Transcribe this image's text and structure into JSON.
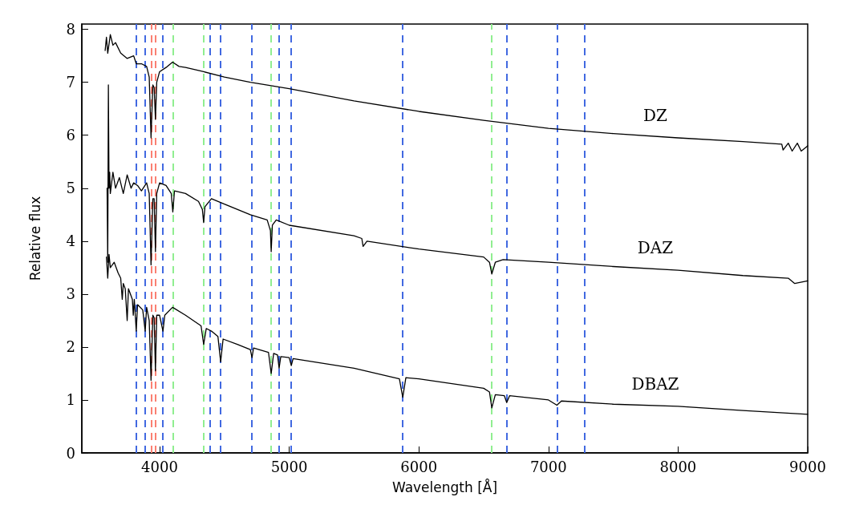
{
  "chart_data": {
    "type": "line",
    "xlabel": "Wavelength [Å]",
    "ylabel": "Relative flux",
    "xlim": [
      3400,
      9000
    ],
    "xticks": [
      4000,
      5000,
      6000,
      7000,
      8000,
      9000
    ],
    "ylim": [
      0,
      8.1
    ],
    "yticks": [
      0,
      1,
      2,
      3,
      4,
      5,
      6,
      7,
      8
    ],
    "grid": false,
    "marker": "none",
    "line_style": "solid",
    "series": [
      {
        "color": "#000000",
        "x": [
          3580,
          3590,
          3600,
          3620,
          3640,
          3660,
          3700,
          3750,
          3800,
          3820,
          3860,
          3900,
          3920,
          3934,
          3948,
          3958,
          3968,
          3978,
          4000,
          4050,
          4100,
          4150,
          4200,
          4340,
          4500,
          4700,
          5000,
          5500,
          6000,
          6500,
          7000,
          7500,
          8000,
          8500,
          8800,
          8810,
          8850,
          8880,
          8920,
          8950,
          9000
        ],
        "values": [
          7.6,
          7.85,
          7.55,
          7.9,
          7.7,
          7.75,
          7.55,
          7.45,
          7.5,
          7.35,
          7.35,
          7.3,
          7.1,
          5.95,
          6.95,
          6.9,
          6.3,
          7.0,
          7.2,
          7.28,
          7.38,
          7.3,
          7.28,
          7.2,
          7.1,
          7.0,
          6.88,
          6.65,
          6.45,
          6.28,
          6.13,
          6.03,
          5.95,
          5.88,
          5.83,
          5.72,
          5.85,
          5.7,
          5.85,
          5.7,
          5.8
        ]
      },
      {
        "color": "#000000",
        "x": [
          3595,
          3600,
          3605,
          3610,
          3615,
          3620,
          3640,
          3660,
          3690,
          3720,
          3750,
          3780,
          3800,
          3830,
          3860,
          3900,
          3920,
          3934,
          3948,
          3958,
          3968,
          3978,
          4000,
          4050,
          4090,
          4102,
          4115,
          4200,
          4300,
          4330,
          4340,
          4350,
          4400,
          4500,
          4700,
          4830,
          4855,
          4861,
          4870,
          4900,
          5000,
          5500,
          5560,
          5570,
          5600,
          6000,
          6500,
          6545,
          6563,
          6590,
          6650,
          7000,
          7500,
          8000,
          8500,
          8850,
          8900,
          9000
        ],
        "values": [
          5.0,
          3.6,
          6.95,
          5.0,
          5.3,
          4.9,
          5.3,
          5.0,
          5.2,
          4.9,
          5.25,
          5.0,
          5.1,
          5.05,
          4.95,
          5.1,
          4.9,
          3.55,
          4.8,
          4.8,
          3.8,
          4.9,
          5.1,
          5.05,
          4.9,
          4.55,
          4.95,
          4.9,
          4.75,
          4.6,
          4.35,
          4.65,
          4.8,
          4.7,
          4.5,
          4.4,
          4.2,
          3.8,
          4.3,
          4.4,
          4.3,
          4.1,
          4.05,
          3.9,
          4.0,
          3.85,
          3.7,
          3.6,
          3.38,
          3.6,
          3.65,
          3.6,
          3.52,
          3.45,
          3.35,
          3.3,
          3.2,
          3.25
        ]
      },
      {
        "color": "#000000",
        "x": [
          3590,
          3600,
          3610,
          3620,
          3650,
          3680,
          3700,
          3712,
          3720,
          3735,
          3750,
          3760,
          3790,
          3797,
          3805,
          3820,
          3830,
          3870,
          3889,
          3900,
          3920,
          3934,
          3948,
          3958,
          3968,
          3978,
          4000,
          4026,
          4040,
          4100,
          4200,
          4320,
          4340,
          4360,
          4400,
          4450,
          4471,
          4490,
          4600,
          4700,
          4713,
          4725,
          4840,
          4861,
          4880,
          4910,
          4922,
          4935,
          5000,
          5016,
          5030,
          5500,
          5850,
          5876,
          5900,
          6000,
          6500,
          6545,
          6563,
          6590,
          6660,
          6678,
          6700,
          7000,
          7065,
          7100,
          7500,
          8000,
          8500,
          9000
        ],
        "values": [
          3.7,
          3.3,
          3.75,
          3.5,
          3.6,
          3.4,
          3.3,
          2.9,
          3.2,
          3.1,
          2.5,
          3.1,
          2.9,
          2.6,
          2.9,
          2.3,
          2.8,
          2.7,
          2.3,
          2.75,
          2.5,
          1.37,
          2.6,
          2.55,
          1.55,
          2.6,
          2.6,
          2.3,
          2.6,
          2.75,
          2.6,
          2.4,
          2.05,
          2.35,
          2.3,
          2.2,
          1.72,
          2.15,
          2.05,
          1.95,
          1.8,
          1.98,
          1.9,
          1.5,
          1.88,
          1.85,
          1.6,
          1.82,
          1.8,
          1.65,
          1.78,
          1.6,
          1.4,
          1.05,
          1.42,
          1.4,
          1.22,
          1.15,
          0.85,
          1.1,
          1.08,
          0.95,
          1.08,
          1.0,
          0.9,
          0.98,
          0.92,
          0.88,
          0.8,
          0.73
        ]
      }
    ],
    "ref_lines": [
      {
        "axis": "x",
        "value": 3820,
        "color": "#4169e1",
        "line_style": "dashed"
      },
      {
        "axis": "x",
        "value": 3889,
        "color": "#4169e1",
        "line_style": "dashed"
      },
      {
        "axis": "x",
        "value": 3934,
        "color": "#fa8072",
        "line_style": "dashed"
      },
      {
        "axis": "x",
        "value": 3968,
        "color": "#fa8072",
        "line_style": "dashed"
      },
      {
        "axis": "x",
        "value": 4026,
        "color": "#4169e1",
        "line_style": "dashed"
      },
      {
        "axis": "x",
        "value": 4102,
        "color": "#90ee90",
        "line_style": "dashed"
      },
      {
        "axis": "x",
        "value": 4340,
        "color": "#90ee90",
        "line_style": "dashed"
      },
      {
        "axis": "x",
        "value": 4388,
        "color": "#4169e1",
        "line_style": "dashed"
      },
      {
        "axis": "x",
        "value": 4471,
        "color": "#4169e1",
        "line_style": "dashed"
      },
      {
        "axis": "x",
        "value": 4713,
        "color": "#4169e1",
        "line_style": "dashed"
      },
      {
        "axis": "x",
        "value": 4861,
        "color": "#90ee90",
        "line_style": "dashed"
      },
      {
        "axis": "x",
        "value": 4922,
        "color": "#4169e1",
        "line_style": "dashed"
      },
      {
        "axis": "x",
        "value": 5016,
        "color": "#4169e1",
        "line_style": "dashed"
      },
      {
        "axis": "x",
        "value": 5876,
        "color": "#4169e1",
        "line_style": "dashed"
      },
      {
        "axis": "x",
        "value": 6563,
        "color": "#90ee90",
        "line_style": "dashed"
      },
      {
        "axis": "x",
        "value": 6678,
        "color": "#4169e1",
        "line_style": "dashed"
      },
      {
        "axis": "x",
        "value": 7065,
        "color": "#4169e1",
        "line_style": "dashed"
      },
      {
        "axis": "x",
        "value": 7281,
        "color": "#4169e1",
        "line_style": "dashed"
      }
    ],
    "annotations": [
      "DZ",
      "DAZ",
      "DBAZ"
    ]
  }
}
